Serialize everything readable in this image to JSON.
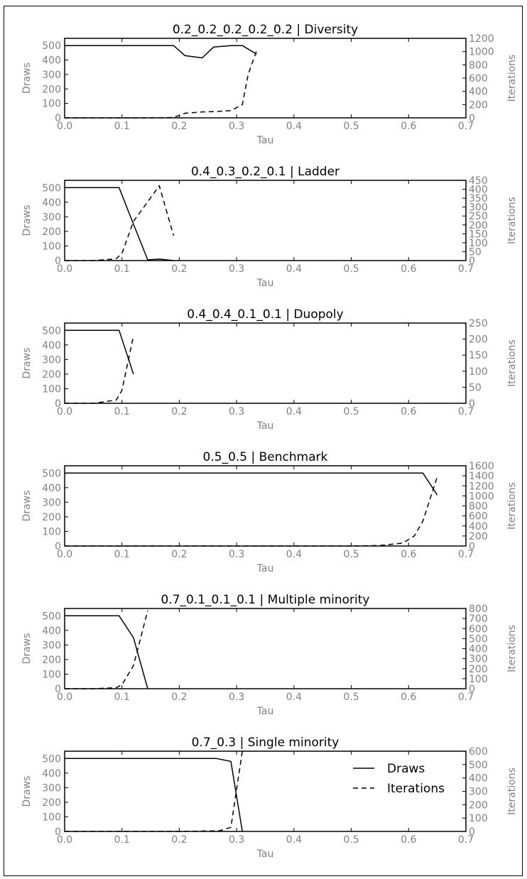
{
  "chart_data": [
    {
      "type": "line",
      "title": "0.2_0.2_0.2_0.2_0.2 | Diversity",
      "xlabel": "Tau",
      "ylabel": "Draws",
      "y2label": "Iterations",
      "xlim": [
        0,
        0.7
      ],
      "ylim": [
        0,
        550
      ],
      "y2lim": [
        0,
        1200
      ],
      "xticks": [
        "0.0",
        "0.1",
        "0.2",
        "0.3",
        "0.4",
        "0.5",
        "0.6",
        "0.7"
      ],
      "yticks": [
        "0",
        "100",
        "200",
        "300",
        "400",
        "500"
      ],
      "y2ticks": [
        "0",
        "200",
        "400",
        "600",
        "800",
        "1000",
        "1200"
      ],
      "grid": false,
      "series": [
        {
          "name": "Draws",
          "axis": "left",
          "style": "solid",
          "x": [
            0.0,
            0.05,
            0.1,
            0.15,
            0.19,
            0.21,
            0.24,
            0.26,
            0.29,
            0.31,
            0.335
          ],
          "y": [
            500,
            500,
            500,
            500,
            500,
            430,
            415,
            490,
            500,
            500,
            440
          ]
        },
        {
          "name": "Iterations",
          "axis": "right",
          "style": "dashed",
          "x": [
            0.0,
            0.05,
            0.1,
            0.15,
            0.19,
            0.21,
            0.24,
            0.265,
            0.29,
            0.31,
            0.32,
            0.335
          ],
          "y": [
            0,
            0,
            0,
            0,
            5,
            70,
            90,
            95,
            110,
            200,
            650,
            1020
          ]
        }
      ]
    },
    {
      "type": "line",
      "title": "0.4_0.3_0.2_0.1 | Ladder",
      "xlabel": "Tau",
      "ylabel": "Draws",
      "y2label": "Iterations",
      "xlim": [
        0,
        0.7
      ],
      "ylim": [
        0,
        550
      ],
      "y2lim": [
        0,
        450
      ],
      "xticks": [
        "0.0",
        "0.1",
        "0.2",
        "0.3",
        "0.4",
        "0.5",
        "0.6",
        "0.7"
      ],
      "yticks": [
        "0",
        "100",
        "200",
        "300",
        "400",
        "500"
      ],
      "y2ticks": [
        "0",
        "50",
        "100",
        "150",
        "200",
        "250",
        "300",
        "350",
        "400",
        "450"
      ],
      "grid": false,
      "series": [
        {
          "name": "Draws",
          "axis": "left",
          "style": "solid",
          "x": [
            0.0,
            0.05,
            0.095,
            0.12,
            0.145,
            0.165,
            0.19
          ],
          "y": [
            500,
            500,
            500,
            250,
            5,
            10,
            0
          ]
        },
        {
          "name": "Iterations",
          "axis": "right",
          "style": "dashed",
          "x": [
            0.0,
            0.05,
            0.09,
            0.1,
            0.12,
            0.145,
            0.165,
            0.19
          ],
          "y": [
            0,
            0,
            10,
            40,
            220,
            330,
            420,
            140
          ]
        }
      ]
    },
    {
      "type": "line",
      "title": "0.4_0.4_0.1_0.1 | Duopoly",
      "xlabel": "Tau",
      "ylabel": "Draws",
      "y2label": "Iterations",
      "xlim": [
        0,
        0.7
      ],
      "ylim": [
        0,
        550
      ],
      "y2lim": [
        0,
        250
      ],
      "xticks": [
        "0.0",
        "0.1",
        "0.2",
        "0.3",
        "0.4",
        "0.5",
        "0.6",
        "0.7"
      ],
      "yticks": [
        "0",
        "100",
        "200",
        "300",
        "400",
        "500"
      ],
      "y2ticks": [
        "0",
        "50",
        "100",
        "150",
        "200",
        "250"
      ],
      "grid": false,
      "series": [
        {
          "name": "Draws",
          "axis": "left",
          "style": "solid",
          "x": [
            0.0,
            0.05,
            0.095,
            0.12
          ],
          "y": [
            500,
            500,
            500,
            200
          ]
        },
        {
          "name": "Iterations",
          "axis": "right",
          "style": "dashed",
          "x": [
            0.0,
            0.05,
            0.09,
            0.1,
            0.12
          ],
          "y": [
            0,
            0,
            10,
            40,
            210
          ]
        }
      ]
    },
    {
      "type": "line",
      "title": "0.5_0.5 | Benchmark",
      "xlabel": "Tau",
      "ylabel": "Draws",
      "y2label": "Iterations",
      "xlim": [
        0,
        0.7
      ],
      "ylim": [
        0,
        550
      ],
      "y2lim": [
        0,
        1600
      ],
      "xticks": [
        "0.0",
        "0.1",
        "0.2",
        "0.3",
        "0.4",
        "0.5",
        "0.6",
        "0.7"
      ],
      "yticks": [
        "0",
        "100",
        "200",
        "300",
        "400",
        "500"
      ],
      "y2ticks": [
        "0",
        "200",
        "400",
        "600",
        "800",
        "1000",
        "1200",
        "1400",
        "1600"
      ],
      "grid": false,
      "series": [
        {
          "name": "Draws",
          "axis": "left",
          "style": "solid",
          "x": [
            0.0,
            0.1,
            0.2,
            0.3,
            0.4,
            0.5,
            0.6,
            0.625,
            0.65
          ],
          "y": [
            500,
            500,
            500,
            500,
            500,
            500,
            500,
            500,
            350
          ]
        },
        {
          "name": "Iterations",
          "axis": "right",
          "style": "dashed",
          "x": [
            0.0,
            0.1,
            0.2,
            0.3,
            0.4,
            0.5,
            0.55,
            0.59,
            0.61,
            0.625,
            0.65
          ],
          "y": [
            0,
            0,
            0,
            0,
            0,
            0,
            10,
            60,
            200,
            500,
            1380
          ]
        }
      ]
    },
    {
      "type": "line",
      "title": "0.7_0.1_0.1_0.1 | Multiple minority",
      "xlabel": "Tau",
      "ylabel": "Draws",
      "y2label": "Iterations",
      "xlim": [
        0,
        0.7
      ],
      "ylim": [
        0,
        550
      ],
      "y2lim": [
        0,
        800
      ],
      "xticks": [
        "0.0",
        "0.1",
        "0.2",
        "0.3",
        "0.4",
        "0.5",
        "0.6",
        "0.7"
      ],
      "yticks": [
        "0",
        "100",
        "200",
        "300",
        "400",
        "500"
      ],
      "y2ticks": [
        "0",
        "100",
        "200",
        "300",
        "400",
        "500",
        "600",
        "700",
        "800"
      ],
      "grid": false,
      "series": [
        {
          "name": "Draws",
          "axis": "left",
          "style": "solid",
          "x": [
            0.0,
            0.05,
            0.095,
            0.12,
            0.145
          ],
          "y": [
            500,
            500,
            500,
            350,
            0
          ]
        },
        {
          "name": "Iterations",
          "axis": "right",
          "style": "dashed",
          "x": [
            0.0,
            0.05,
            0.09,
            0.1,
            0.12,
            0.145
          ],
          "y": [
            0,
            0,
            10,
            40,
            230,
            780
          ]
        }
      ]
    },
    {
      "type": "line",
      "title": "0.7_0.3 | Single minority",
      "xlabel": "Tau",
      "ylabel": "Draws",
      "y2label": "Iterations",
      "xlim": [
        0,
        0.7
      ],
      "ylim": [
        0,
        550
      ],
      "y2lim": [
        0,
        600
      ],
      "xticks": [
        "0.0",
        "0.1",
        "0.2",
        "0.3",
        "0.4",
        "0.5",
        "0.6",
        "0.7"
      ],
      "yticks": [
        "0",
        "100",
        "200",
        "300",
        "400",
        "500"
      ],
      "y2ticks": [
        "0",
        "100",
        "200",
        "300",
        "400",
        "500",
        "600"
      ],
      "grid": false,
      "legend": {
        "position": "right",
        "entries": [
          "Draws",
          "Iterations"
        ]
      },
      "series": [
        {
          "name": "Draws",
          "axis": "left",
          "style": "solid",
          "x": [
            0.0,
            0.1,
            0.2,
            0.265,
            0.29,
            0.31
          ],
          "y": [
            500,
            500,
            500,
            500,
            480,
            0
          ]
        },
        {
          "name": "Iterations",
          "axis": "right",
          "style": "dashed",
          "x": [
            0.0,
            0.1,
            0.2,
            0.27,
            0.29,
            0.31
          ],
          "y": [
            0,
            0,
            0,
            5,
            30,
            600
          ]
        }
      ]
    }
  ]
}
